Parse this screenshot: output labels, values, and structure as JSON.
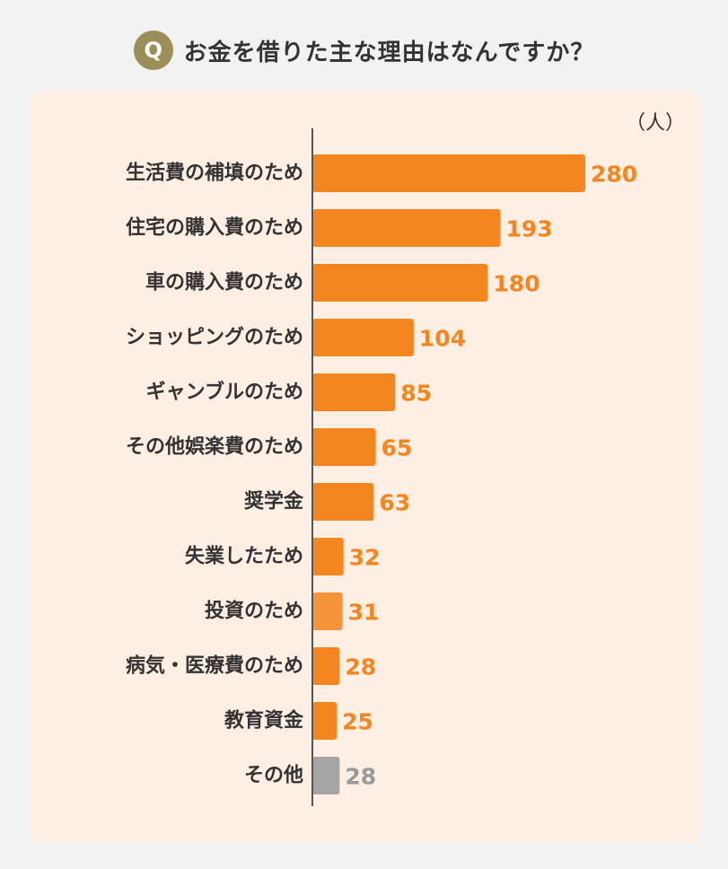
{
  "header": {
    "badge": "Q",
    "question": "お金を借りた主な理由はなんですか？"
  },
  "unit_label": "（人）",
  "colors": {
    "bar": "#f5861f",
    "bar_light": "#f7943a",
    "bar_other": "#a6a6a6",
    "value_text": "#f5861f",
    "value_text_other": "#999999",
    "panel": "#fdefe3",
    "badge": "#9b8f58",
    "axis": "#555555"
  },
  "chart_data": {
    "type": "bar",
    "orientation": "horizontal",
    "title": "お金を借りた主な理由はなんですか？",
    "unit": "（人）",
    "xlim": [
      0,
      280
    ],
    "grid": false,
    "categories": [
      "生活費の補填のため",
      "住宅の購入費のため",
      "車の購入費のため",
      "ショッピングのため",
      "ギャンブルのため",
      "その他娯楽費のため",
      "奨学金",
      "失業したため",
      "投資のため",
      "病気・医療費のため",
      "教育資金",
      "その他"
    ],
    "values": [
      280,
      193,
      180,
      104,
      85,
      65,
      63,
      32,
      31,
      28,
      25,
      28
    ],
    "bar_color_keys": [
      "bar",
      "bar",
      "bar",
      "bar",
      "bar",
      "bar",
      "bar",
      "bar",
      "bar_light",
      "bar",
      "bar",
      "bar_other"
    ]
  }
}
